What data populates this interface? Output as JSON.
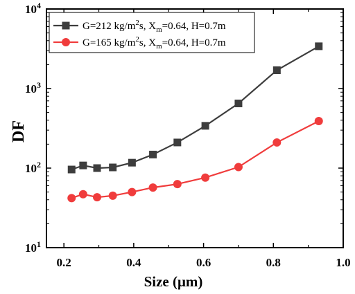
{
  "chart_data": {
    "type": "line",
    "xlabel": "Size (μm)",
    "ylabel": "DF",
    "xlim": [
      0.15,
      1.0
    ],
    "ylim": [
      10,
      10000
    ],
    "yscale": "log",
    "x_ticks": [
      0.2,
      0.4,
      0.6,
      0.8,
      1.0
    ],
    "x_tick_labels": [
      "0.2",
      "0.4",
      "0.6",
      "0.8",
      "1.0"
    ],
    "y_ticks": [
      10,
      100,
      1000,
      10000
    ],
    "y_tick_labels": [
      {
        "base": "10",
        "exp": "1"
      },
      {
        "base": "10",
        "exp": "2"
      },
      {
        "base": "10",
        "exp": "3"
      },
      {
        "base": "10",
        "exp": "4"
      }
    ],
    "legend_position": "top-left",
    "series": [
      {
        "legend": {
          "pre": "G=212 kg/m",
          "sup": "2",
          "mid": "s, X",
          "sub": "m",
          "post": "=0.64, H=0.7m"
        },
        "color": "#3d3d3d",
        "marker": "square",
        "x": [
          0.222,
          0.255,
          0.295,
          0.34,
          0.395,
          0.455,
          0.525,
          0.605,
          0.7,
          0.81,
          0.93
        ],
        "y": [
          96,
          108,
          100,
          102,
          117,
          148,
          210,
          340,
          650,
          1700,
          3400
        ]
      },
      {
        "legend": {
          "pre": "G=165 kg/m",
          "sup": "2",
          "mid": "s, X",
          "sub": "m",
          "post": "=0.64, H=0.7m"
        },
        "color": "#f03c3c",
        "marker": "circle",
        "x": [
          0.222,
          0.255,
          0.295,
          0.34,
          0.395,
          0.455,
          0.525,
          0.605,
          0.7,
          0.81,
          0.93
        ],
        "y": [
          42,
          47,
          43,
          45,
          50,
          57,
          63,
          76,
          103,
          210,
          390
        ]
      }
    ]
  }
}
